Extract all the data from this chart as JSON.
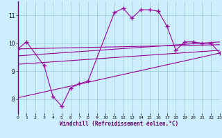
{
  "xlabel": "Windchill (Refroidissement éolien,°C)",
  "bg_color": "#cceeff",
  "line_color": "#990099",
  "grid_color": "#99cccc",
  "xlim": [
    0,
    23
  ],
  "ylim": [
    7.5,
    11.5
  ],
  "yticks": [
    8,
    9,
    10,
    11
  ],
  "xticks": [
    0,
    1,
    2,
    3,
    4,
    5,
    6,
    7,
    8,
    9,
    10,
    11,
    12,
    13,
    14,
    15,
    16,
    17,
    18,
    19,
    20,
    21,
    22,
    23
  ],
  "line1_x": [
    0,
    1,
    3,
    4,
    5,
    6,
    7,
    8,
    11,
    12,
    13,
    14,
    15,
    16,
    17,
    18,
    19,
    20,
    21,
    22,
    23
  ],
  "line1_y": [
    9.8,
    10.05,
    9.2,
    8.1,
    7.75,
    8.4,
    8.55,
    8.65,
    11.1,
    11.25,
    10.9,
    11.2,
    11.2,
    11.15,
    10.6,
    9.75,
    10.05,
    10.05,
    10.0,
    10.0,
    9.65
  ],
  "line2_x": [
    0,
    23
  ],
  "line2_y": [
    9.8,
    9.95
  ],
  "line3_x": [
    0,
    23
  ],
  "line3_y": [
    9.55,
    10.05
  ],
  "line4_x": [
    0,
    23
  ],
  "line4_y": [
    8.05,
    9.65
  ],
  "line5_x": [
    0,
    23
  ],
  "line5_y": [
    9.25,
    9.75
  ]
}
